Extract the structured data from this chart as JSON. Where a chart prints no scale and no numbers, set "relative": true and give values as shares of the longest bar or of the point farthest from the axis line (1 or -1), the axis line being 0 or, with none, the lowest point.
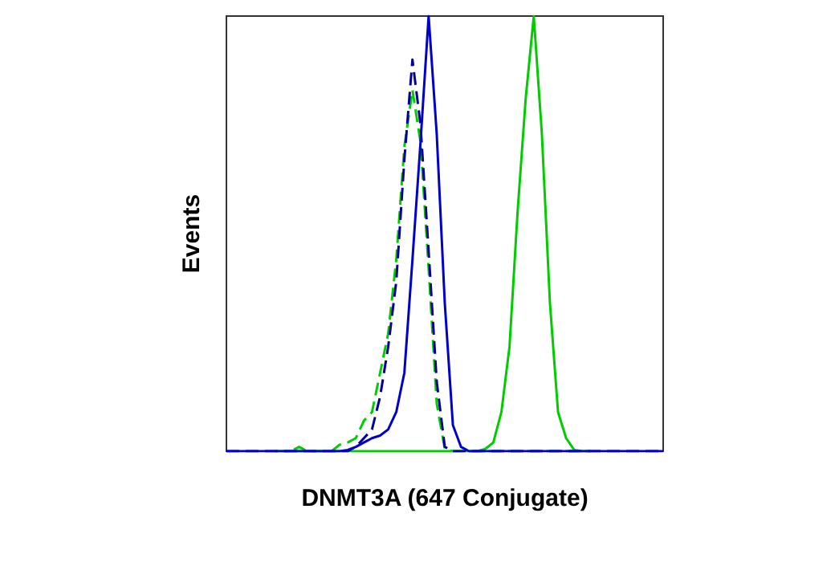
{
  "chart_data": {
    "type": "line",
    "xlabel": "DNMT3A (647 Conjugate)",
    "ylabel": "Events",
    "relative": true,
    "marker": "none",
    "categories": [
      null,
      null,
      null,
      null,
      null,
      null,
      null,
      null,
      null,
      null,
      null,
      null,
      null,
      null,
      null,
      null,
      null,
      null,
      null,
      null,
      null,
      null,
      null,
      null,
      null,
      null,
      null,
      null,
      null,
      null,
      null,
      null,
      null,
      null,
      null,
      null,
      null,
      null,
      null,
      null,
      null,
      null,
      null,
      null,
      null,
      null,
      null,
      null,
      null,
      null,
      null,
      null,
      null,
      null,
      null
    ],
    "series": [
      {
        "color": "#00cc00",
        "line_style": "solid",
        "values": [
          null,
          null,
          null,
          null,
          null,
          null,
          null,
          0,
          0,
          0,
          0,
          0,
          0,
          0,
          0,
          0,
          0,
          0,
          0,
          0,
          0,
          0,
          0,
          0,
          0,
          0,
          0,
          0,
          0,
          0,
          0,
          0,
          0.005,
          0.02,
          0.09,
          0.24,
          0.55,
          0.81,
          1,
          0.73,
          0.34,
          0.09,
          0.03,
          0.003,
          0,
          0,
          null,
          null,
          null,
          null,
          null,
          null,
          null,
          null,
          null
        ]
      },
      {
        "color": "#00cc00",
        "line_style": "dashed",
        "values": [
          null,
          null,
          null,
          null,
          null,
          null,
          0,
          0,
          0,
          0.01,
          0,
          0,
          0,
          0,
          0.015,
          0.02,
          0.03,
          0.07,
          0.09,
          0.18,
          0.27,
          0.44,
          0.7,
          0.83,
          0.71,
          0.42,
          0.11,
          0.005,
          0,
          0,
          0,
          0,
          0,
          0,
          0,
          0,
          0,
          0,
          0,
          0,
          0,
          0,
          0,
          0,
          0,
          0,
          null,
          null,
          null,
          null,
          null,
          null,
          null,
          null,
          null
        ]
      },
      {
        "color": "#000099",
        "line_style": "dashed",
        "values": [
          0,
          0,
          0,
          0,
          0,
          0,
          0,
          0,
          0,
          0,
          0,
          0,
          0,
          0,
          0,
          0,
          0.01,
          0.03,
          0.05,
          0.125,
          0.24,
          0.39,
          0.67,
          0.9,
          0.75,
          0.46,
          0.16,
          0.01,
          0,
          0,
          0,
          0,
          0,
          0,
          0,
          0,
          0,
          0,
          0,
          0,
          0,
          0,
          0,
          0,
          0,
          0,
          0,
          0,
          0,
          0,
          0,
          0,
          0,
          0,
          0
        ]
      },
      {
        "color": "#0000cc",
        "line_style": "solid",
        "values": [
          0,
          0,
          0,
          0,
          0,
          0,
          0,
          0,
          0,
          0,
          0,
          0,
          0,
          0,
          0,
          0.003,
          0.01,
          0.02,
          0.03,
          0.036,
          0.05,
          0.09,
          0.18,
          0.44,
          0.71,
          1,
          0.73,
          0.34,
          0.06,
          0.01,
          0,
          0,
          0,
          0,
          0,
          0,
          0,
          0,
          0,
          0,
          0,
          0,
          0,
          0,
          0,
          0,
          0,
          0,
          0,
          0,
          0,
          0,
          0,
          0,
          0
        ]
      }
    ]
  }
}
